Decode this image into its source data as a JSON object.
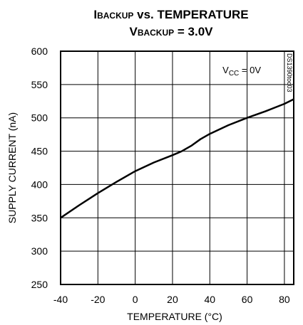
{
  "chart_data": {
    "type": "line",
    "title_line1": {
      "main": "I",
      "sub": "BACKUP",
      "rest": " vs. TEMPERATURE"
    },
    "title_line2": {
      "main": "V",
      "sub": "BACKUP",
      "rest": " = 3.0V"
    },
    "xlabel": "TEMPERATURE (°C)",
    "ylabel": "SUPPLY CURRENT (nA)",
    "xlim": [
      -40,
      85
    ],
    "ylim": [
      250,
      600
    ],
    "xticks": [
      -40,
      -20,
      0,
      20,
      40,
      60,
      80
    ],
    "yticks": [
      250,
      300,
      350,
      400,
      450,
      500,
      550,
      600
    ],
    "grid": true,
    "annotation": {
      "main": "V",
      "sub": "CC",
      "rest": " = 0V"
    },
    "figure_code": "DS1390toc03",
    "series": [
      {
        "x": [
          -40,
          -30,
          -20,
          -10,
          0,
          10,
          20,
          25,
          30,
          35,
          40,
          50,
          60,
          70,
          80,
          85
        ],
        "values": [
          350,
          369,
          387,
          404,
          420,
          433,
          444,
          450,
          458,
          468,
          476,
          489,
          500,
          510,
          521,
          528
        ]
      }
    ],
    "colors": {
      "line": "#000000",
      "grid": "#000000"
    }
  }
}
